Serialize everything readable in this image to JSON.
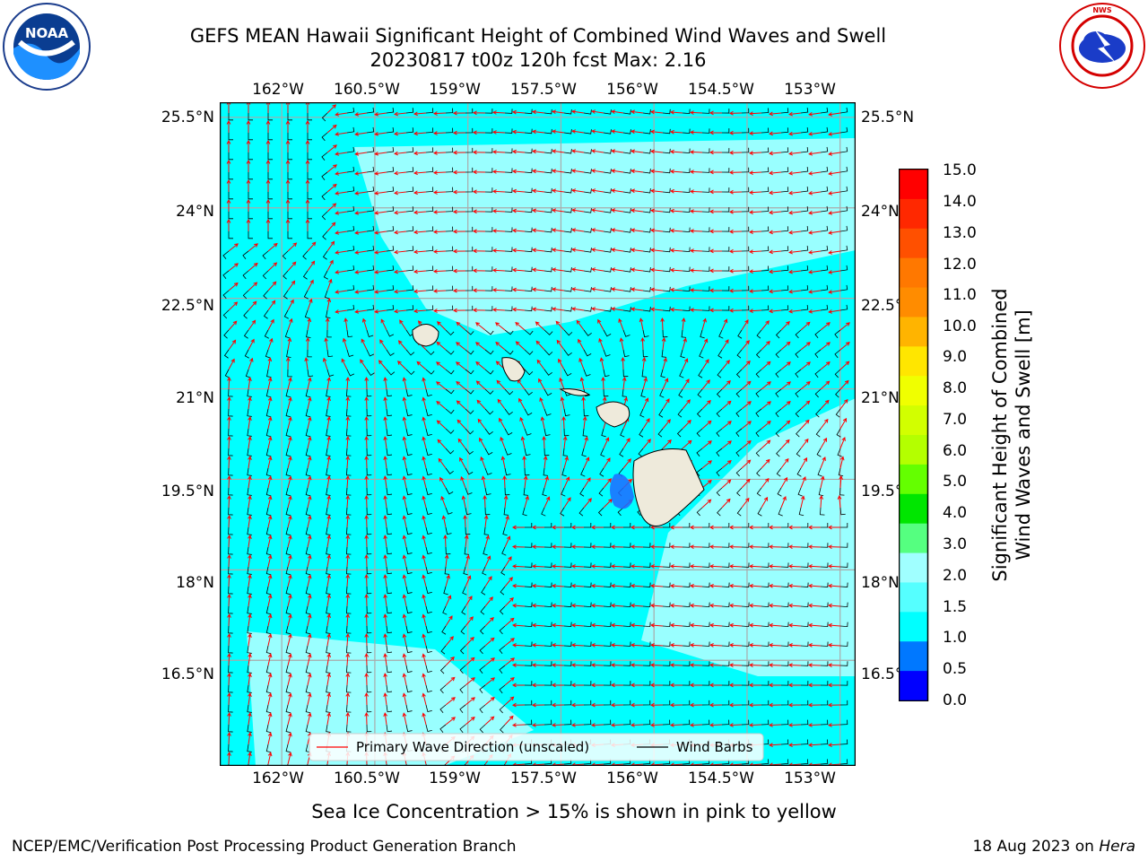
{
  "header": {
    "title_line1": "GEFS MEAN Hawaii Significant Height of Combined Wind Waves and Swell",
    "title_line2": "20230817 t00z 120h fcst   Max: 2.16"
  },
  "logos": {
    "left": {
      "text": "NOAA",
      "ring_text": "NATIONAL OCEANIC AND ATMOSPHERIC ADMINISTRATION · U.S. DEPARTMENT OF COMMERCE"
    },
    "right": {
      "ring_text": "NATIONAL WEATHER SERVICE"
    }
  },
  "map": {
    "lon_ticks": [
      "162°W",
      "160.5°W",
      "159°W",
      "157.5°W",
      "156°W",
      "154.5°W",
      "153°W"
    ],
    "lat_ticks": [
      "25.5°N",
      "24°N",
      "22.5°N",
      "21°N",
      "19.5°N",
      "18°N",
      "16.5°N"
    ],
    "lon_range": [
      -163.0,
      -152.75
    ],
    "lat_range": [
      14.75,
      25.75
    ],
    "field_max_m": 2.16,
    "colors": {
      "ocean_base": "#00ffff",
      "ocean_higher": "#99ffff",
      "land": "#eeeadb",
      "primary_wave_arrow": "#ff0000",
      "wind_barb": "#000000"
    },
    "legend": {
      "primary_wave": "Primary Wave Direction (unscaled)",
      "wind_barbs": "Wind Barbs"
    }
  },
  "colorbar": {
    "label_line1": "Significant Height of Combined",
    "label_line2": "Wind Waves and Swell [m]",
    "ticks": [
      "15.0",
      "14.0",
      "13.0",
      "12.0",
      "11.0",
      "10.0",
      "9.0",
      "8.0",
      "7.0",
      "6.0",
      "5.0",
      "4.0",
      "3.0",
      "2.0",
      "1.5",
      "1.0",
      "0.5",
      "0.0"
    ],
    "colors_top_to_bottom": [
      "#ff0000",
      "#ff2800",
      "#ff5000",
      "#ff7800",
      "#ff8c00",
      "#ffb400",
      "#ffe600",
      "#f0ff00",
      "#d2ff00",
      "#b4ff00",
      "#64ff00",
      "#00e600",
      "#55ff80",
      "#a0ffff",
      "#55ffff",
      "#00ffff",
      "#0078ff",
      "#0000ff"
    ]
  },
  "notes": {
    "sea_ice": "Sea Ice Concentration > 15% is shown in pink to yellow"
  },
  "footer": {
    "left": "NCEP/EMC/Verification Post Processing Product Generation Branch",
    "right_prefix": "18 Aug 2023 on ",
    "right_host": "Hera"
  }
}
